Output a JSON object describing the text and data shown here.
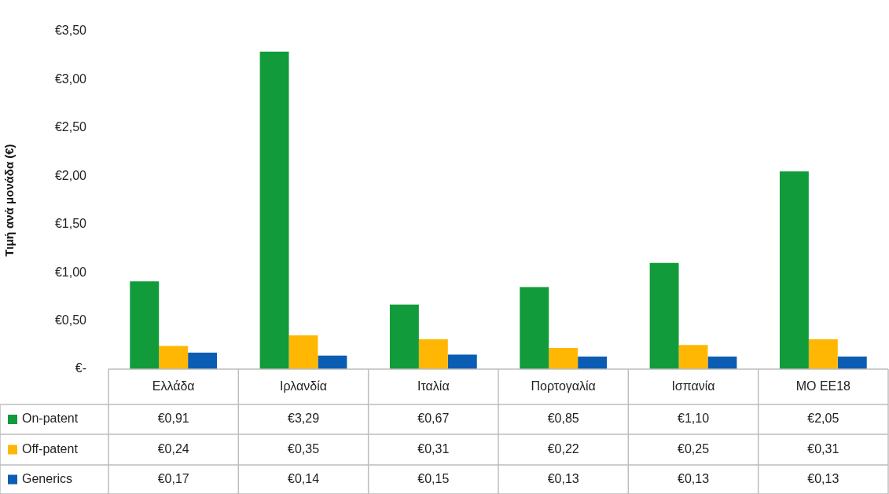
{
  "chart_data": {
    "type": "bar",
    "ylabel": "Τιμή ανά μονάδα (€)",
    "categories": [
      "Ελλάδα",
      "Ιρλανδία",
      "Ιταλία",
      "Πορτογαλία",
      "Ισπανία",
      "ΜΟ ΕΕ18"
    ],
    "series": [
      {
        "name": "On-patent",
        "color": "#129b3b",
        "values": [
          0.91,
          3.29,
          0.67,
          0.85,
          1.1,
          2.05
        ],
        "value_labels": [
          "€0,91",
          "€3,29",
          "€0,67",
          "€0,85",
          "€1,10",
          "€2,05"
        ]
      },
      {
        "name": "Off-patent",
        "color": "#ffb703",
        "values": [
          0.24,
          0.35,
          0.31,
          0.22,
          0.25,
          0.31
        ],
        "value_labels": [
          "€0,24",
          "€0,35",
          "€0,31",
          "€0,22",
          "€0,25",
          "€0,31"
        ]
      },
      {
        "name": "Generics",
        "color": "#0b5db3",
        "values": [
          0.17,
          0.14,
          0.15,
          0.13,
          0.13,
          0.13
        ],
        "value_labels": [
          "€0,17",
          "€0,14",
          "€0,15",
          "€0,13",
          "€0,13",
          "€0,13"
        ]
      }
    ],
    "ylim": [
      0,
      3.5
    ],
    "yticks": [
      {
        "value": 0,
        "label": "€-"
      },
      {
        "value": 0.5,
        "label": "€0,50"
      },
      {
        "value": 1,
        "label": "€1,00"
      },
      {
        "value": 1.5,
        "label": "€1,50"
      },
      {
        "value": 2,
        "label": "€2,00"
      },
      {
        "value": 2.5,
        "label": "€2,50"
      },
      {
        "value": 3,
        "label": "€3,00"
      },
      {
        "value": 3.5,
        "label": "€3,50"
      }
    ],
    "grid": false,
    "legend": "bottom left"
  }
}
